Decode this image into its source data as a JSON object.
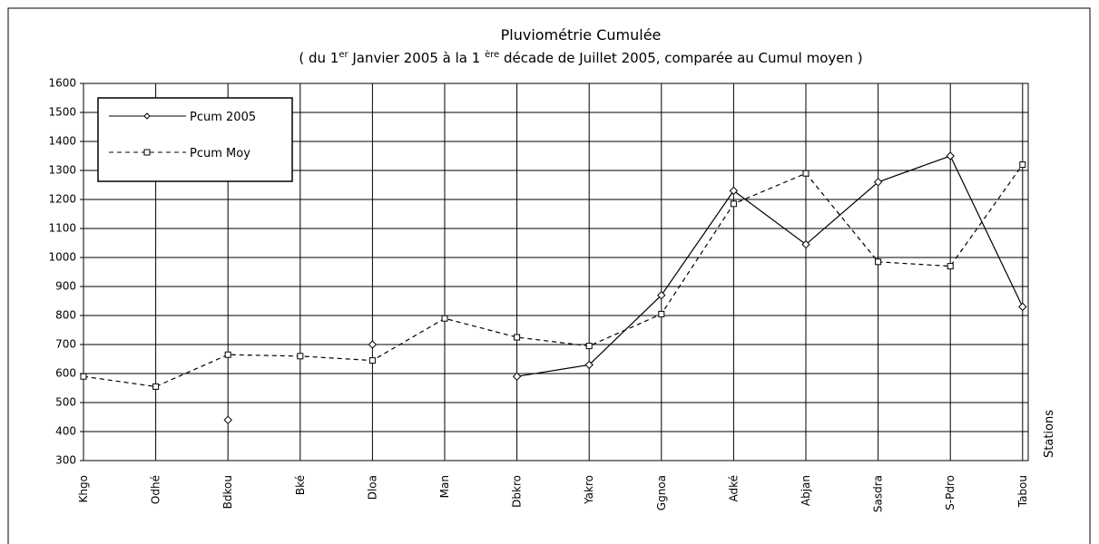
{
  "chart_data": {
    "type": "line",
    "title": "Pluviométrie Cumulée",
    "subtitle_parts": [
      "( du 1",
      "er",
      " Janvier 2005  à  la 1 ",
      "ère",
      " décade de  Juillet  2005, comparée au Cumul moyen  )"
    ],
    "x_label": "Stations",
    "categories": [
      "Khgo",
      "Odhé",
      "Bdkou",
      "Bké",
      "Dloa",
      "Man",
      "Dbkro",
      "Yakro",
      "Ggnoa",
      "Adké",
      "Abjan",
      "Sasdra",
      "S-Pdro",
      "Tabou"
    ],
    "series": [
      {
        "name": "Pcum 2005",
        "color": "#000000",
        "dash": false,
        "marker": "diamond",
        "values": [
          null,
          null,
          440,
          null,
          700,
          null,
          590,
          630,
          870,
          1230,
          1045,
          1260,
          1350,
          830
        ]
      },
      {
        "name": "Pcum Moy",
        "color": "#000000",
        "dash": true,
        "marker": "square",
        "values": [
          590,
          555,
          665,
          660,
          645,
          790,
          725,
          695,
          805,
          1185,
          1290,
          985,
          970,
          1320
        ]
      }
    ],
    "ylim": [
      300,
      1600
    ],
    "yticks": [
      300,
      400,
      500,
      600,
      700,
      800,
      900,
      1000,
      1100,
      1200,
      1300,
      1400,
      1500,
      1600
    ],
    "grid": true,
    "legend": "top-left"
  }
}
